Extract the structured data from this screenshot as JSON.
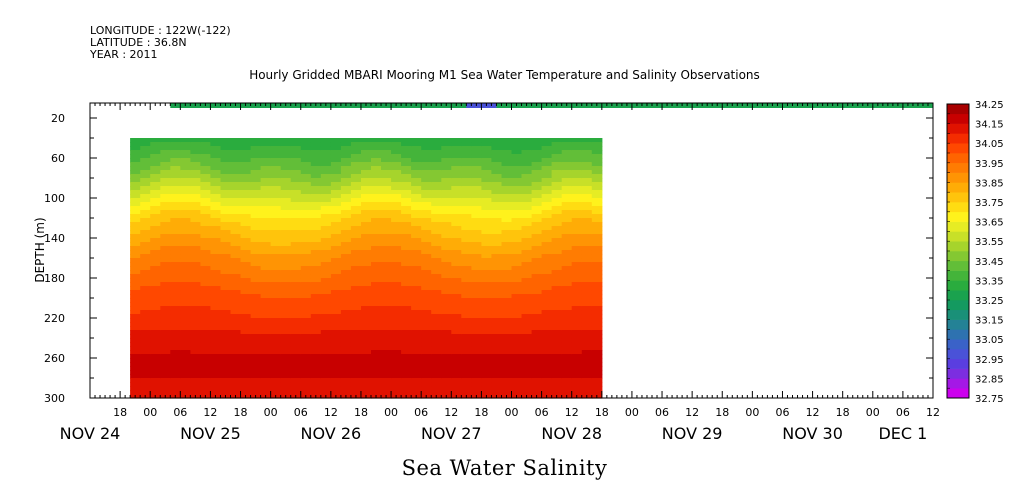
{
  "header": {
    "longitude": "LONGITUDE : 122W(-122)",
    "latitude": "LATITUDE : 36.8N",
    "year": "YEAR : 2011"
  },
  "chart_data": {
    "type": "heatmap",
    "title": "Hourly Gridded MBARI Mooring M1 Sea Water Temperature and Salinity Observations",
    "bottom_title": "Sea Water Salinity",
    "ylabel": "DEPTH (m)",
    "x_unit": "hours since NOV 24 12:00",
    "xlim": [
      0,
      168
    ],
    "ylim": [
      300,
      5
    ],
    "y_ticks": [
      20,
      60,
      100,
      140,
      180,
      220,
      260,
      300
    ],
    "x_tick_labels": [
      "18",
      "00",
      "06",
      "12",
      "18",
      "00",
      "06",
      "12",
      "18",
      "00",
      "06",
      "12",
      "18",
      "00",
      "06",
      "12",
      "18",
      "00",
      "06",
      "12",
      "18",
      "00",
      "06",
      "12",
      "18",
      "00",
      "06",
      "12"
    ],
    "x_tick_hours": [
      6,
      12,
      18,
      24,
      30,
      36,
      42,
      48,
      54,
      60,
      66,
      72,
      78,
      84,
      90,
      96,
      102,
      108,
      114,
      120,
      126,
      132,
      138,
      144,
      150,
      156,
      162,
      168
    ],
    "date_labels": [
      {
        "label": "NOV 24",
        "hour": 0
      },
      {
        "label": "NOV 25",
        "hour": 24
      },
      {
        "label": "NOV 26",
        "hour": 48
      },
      {
        "label": "NOV 27",
        "hour": 72
      },
      {
        "label": "NOV 28",
        "hour": 96
      },
      {
        "label": "NOV 29",
        "hour": 120
      },
      {
        "label": "NOV 30",
        "hour": 144
      },
      {
        "label": "DEC  1",
        "hour": 162
      }
    ],
    "data_extent": {
      "x": [
        8,
        102
      ],
      "depth": [
        40,
        300
      ]
    },
    "surface_band": {
      "x": [
        16,
        168
      ],
      "depth": [
        5,
        10
      ],
      "typical_value": 33.25,
      "fresh_patch": {
        "x": [
          75,
          81
        ],
        "value": 32.95
      }
    },
    "color_levels": [
      32.75,
      32.8,
      32.85,
      32.9,
      32.95,
      33.0,
      33.05,
      33.1,
      33.15,
      33.2,
      33.25,
      33.3,
      33.35,
      33.4,
      33.45,
      33.5,
      33.55,
      33.6,
      33.65,
      33.7,
      33.75,
      33.8,
      33.85,
      33.9,
      33.95,
      34.0,
      34.05,
      34.1,
      34.15,
      34.2,
      34.25
    ],
    "colorbar_labels": [
      "34.25",
      "34.15",
      "34.05",
      "33.95",
      "33.85",
      "33.75",
      "33.65",
      "33.55",
      "33.45",
      "33.35",
      "33.25",
      "33.15",
      "33.05",
      "32.95",
      "32.85",
      "32.75"
    ],
    "colors": [
      "#cc00ee",
      "#a418e6",
      "#7c2ee0",
      "#5a3ee0",
      "#4a52d8",
      "#3a62c8",
      "#2e72b0",
      "#248296",
      "#1a9078",
      "#149a60",
      "#1aa24e",
      "#2aac3e",
      "#44b43a",
      "#62be38",
      "#84c832",
      "#a6d42c",
      "#c8e028",
      "#e6ec24",
      "#fff21c",
      "#ffdc12",
      "#ffc40c",
      "#ffac06",
      "#ff9404",
      "#ff7c02",
      "#ff6400",
      "#ff4800",
      "#f42c00",
      "#e01200",
      "#c80000",
      "#a80000"
    ],
    "profile_depth": [
      40,
      60,
      80,
      100,
      120,
      140,
      160,
      180,
      200,
      220,
      240,
      260,
      280,
      300
    ],
    "profile_salinity": [
      33.32,
      33.4,
      33.5,
      33.62,
      33.74,
      33.82,
      33.9,
      33.96,
      34.02,
      34.06,
      34.12,
      34.16,
      34.15,
      34.13
    ]
  }
}
